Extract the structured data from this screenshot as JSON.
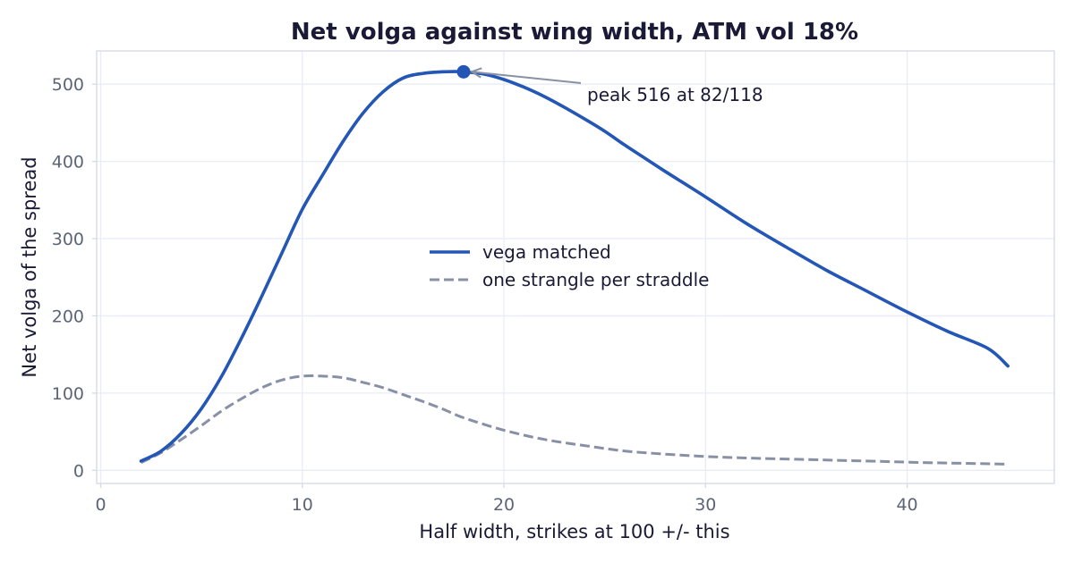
{
  "chart_data": {
    "type": "line",
    "title": "Net volga against wing width, ATM vol 18%",
    "xlabel": "Half width, strikes at 100 +/- this",
    "ylabel": "Net volga of the spread",
    "xlim": [
      -0.2,
      47.3
    ],
    "ylim": [
      -17,
      543
    ],
    "xticks": [
      0,
      10,
      20,
      30,
      40
    ],
    "yticks": [
      0,
      100,
      200,
      300,
      400,
      500
    ],
    "grid": true,
    "legend_position": "center",
    "series": [
      {
        "name": "vega matched",
        "style": "solid",
        "color": "#2356b5",
        "x": [
          2,
          3,
          4,
          5,
          6,
          7,
          8,
          9,
          10,
          11,
          12,
          13,
          14,
          15,
          16,
          17,
          18,
          19,
          20,
          21,
          22,
          23,
          24,
          25,
          26,
          27,
          28,
          30,
          32,
          34,
          36,
          38,
          40,
          42,
          44,
          45
        ],
        "y": [
          12,
          25,
          48,
          80,
          122,
          172,
          226,
          282,
          338,
          382,
          425,
          462,
          490,
          508,
          514,
          516,
          516,
          513,
          506,
          496,
          484,
          470,
          455,
          439,
          421,
          404,
          387,
          354,
          320,
          289,
          259,
          232,
          205,
          180,
          158,
          135
        ]
      },
      {
        "name": "one strangle per straddle",
        "style": "dashed",
        "color": "#8890a6",
        "x": [
          2,
          3,
          4,
          5,
          6,
          7,
          8,
          9,
          10,
          11,
          12,
          13,
          14,
          15,
          16,
          17,
          18,
          20,
          22,
          24,
          26,
          28,
          30,
          32,
          35,
          38,
          41,
          45
        ],
        "y": [
          10,
          23,
          40,
          58,
          77,
          93,
          107,
          117,
          122,
          122,
          120,
          114,
          107,
          98,
          89,
          79,
          68,
          52,
          40,
          32,
          25,
          21,
          18,
          16,
          14,
          12,
          10,
          8
        ]
      }
    ],
    "annotation": {
      "text": "peak 516 at 82/118",
      "point": {
        "x": 18,
        "y": 516
      }
    }
  },
  "colors": {
    "primary": "#2356b5",
    "secondary": "#8890a6",
    "grid": "#e9ebf7",
    "frame": "#d5d9e6",
    "text": "#1b1a36",
    "tick_text": "#5b6478"
  }
}
